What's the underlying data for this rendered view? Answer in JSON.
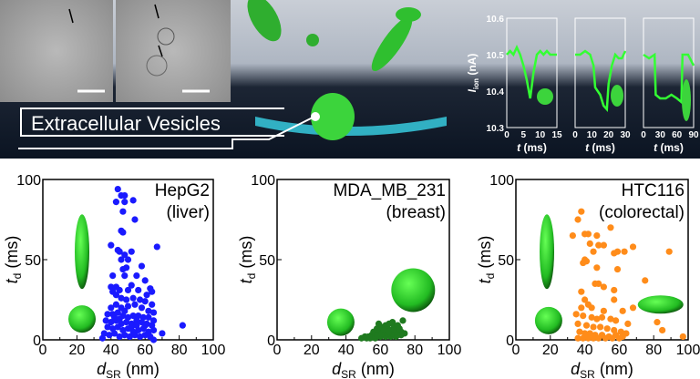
{
  "banner": {
    "caption": "Extracellular Vesicles",
    "traces": {
      "ylabel": "I_ion (nA)",
      "ylabel_main": "I",
      "ylabel_sub": "ion",
      "ylabel_unit": " (nA)",
      "yticks": [
        "10.3",
        "10.4",
        "10.5",
        "10.6"
      ],
      "ylim": [
        10.3,
        10.6
      ],
      "xlabel_main": "t",
      "xlabel_unit": " (ms)",
      "color": "#33ff33",
      "panels": [
        {
          "xticks": [
            "0",
            "5",
            "10",
            "15"
          ],
          "xlim": [
            0,
            15
          ],
          "points": [
            [
              0,
              10.5
            ],
            [
              1,
              10.51
            ],
            [
              2,
              10.5
            ],
            [
              3,
              10.52
            ],
            [
              4,
              10.5
            ],
            [
              5,
              10.47
            ],
            [
              6,
              10.43
            ],
            [
              7,
              10.38
            ],
            [
              8,
              10.45
            ],
            [
              9,
              10.5
            ],
            [
              10,
              10.51
            ],
            [
              11,
              10.5
            ],
            [
              12,
              10.51
            ],
            [
              13,
              10.5
            ],
            [
              14,
              10.5
            ],
            [
              15,
              10.5
            ]
          ]
        },
        {
          "xticks": [
            "0",
            "10",
            "20",
            "30"
          ],
          "xlim": [
            0,
            30
          ],
          "points": [
            [
              0,
              10.5
            ],
            [
              3,
              10.5
            ],
            [
              6,
              10.51
            ],
            [
              9,
              10.5
            ],
            [
              11,
              10.47
            ],
            [
              12,
              10.41
            ],
            [
              15,
              10.39
            ],
            [
              17,
              10.36
            ],
            [
              19,
              10.35
            ],
            [
              20,
              10.42
            ],
            [
              22,
              10.47
            ],
            [
              24,
              10.5
            ],
            [
              26,
              10.49
            ],
            [
              28,
              10.49
            ],
            [
              30,
              10.51
            ]
          ]
        },
        {
          "xticks": [
            "0",
            "30",
            "60",
            "90"
          ],
          "xlim": [
            0,
            90
          ],
          "points": [
            [
              0,
              10.5
            ],
            [
              10,
              10.49
            ],
            [
              20,
              10.5
            ],
            [
              22,
              10.39
            ],
            [
              30,
              10.38
            ],
            [
              40,
              10.38
            ],
            [
              50,
              10.39
            ],
            [
              60,
              10.38
            ],
            [
              68,
              10.37
            ],
            [
              70,
              10.5
            ],
            [
              80,
              10.5
            ],
            [
              90,
              10.47
            ]
          ]
        }
      ]
    }
  },
  "chart_data": [
    {
      "type": "scatter",
      "title": "HepG2",
      "subtitle": "(liver)",
      "xlabel": "d_SR (nm)",
      "ylabel": "t_d (ms)",
      "xlim": [
        0,
        100
      ],
      "ylim": [
        0,
        100
      ],
      "xticks": [
        "0",
        "20",
        "40",
        "60",
        "80",
        "100"
      ],
      "yticks": [
        "0",
        "50",
        "100"
      ],
      "color": "#1a1aff",
      "points": [
        [
          44,
          94
        ],
        [
          46,
          90
        ],
        [
          48,
          90
        ],
        [
          43,
          86
        ],
        [
          48,
          86
        ],
        [
          53,
          87
        ],
        [
          47,
          80
        ],
        [
          54,
          75
        ],
        [
          46,
          68
        ],
        [
          47,
          67
        ],
        [
          67,
          58
        ],
        [
          40,
          59
        ],
        [
          44,
          56
        ],
        [
          45,
          55
        ],
        [
          52,
          55
        ],
        [
          48,
          53
        ],
        [
          46,
          50
        ],
        [
          50,
          50
        ],
        [
          58,
          46
        ],
        [
          47,
          44
        ],
        [
          49,
          45
        ],
        [
          41,
          40
        ],
        [
          48,
          40
        ],
        [
          55,
          40
        ],
        [
          60,
          37
        ],
        [
          40,
          33
        ],
        [
          43,
          33
        ],
        [
          45,
          31
        ],
        [
          50,
          31
        ],
        [
          52,
          34
        ],
        [
          56,
          31
        ],
        [
          63,
          32
        ],
        [
          64,
          30
        ],
        [
          41,
          30
        ],
        [
          43,
          28
        ],
        [
          46,
          26
        ],
        [
          49,
          25
        ],
        [
          53,
          26
        ],
        [
          57,
          25
        ],
        [
          60,
          24
        ],
        [
          61,
          28
        ],
        [
          64,
          22
        ],
        [
          40,
          20
        ],
        [
          43,
          22
        ],
        [
          46,
          20
        ],
        [
          50,
          21
        ],
        [
          54,
          22
        ],
        [
          58,
          20
        ],
        [
          62,
          18
        ],
        [
          65,
          17
        ],
        [
          38,
          16
        ],
        [
          41,
          16
        ],
        [
          44,
          17
        ],
        [
          47,
          15
        ],
        [
          50,
          14
        ],
        [
          53,
          15
        ],
        [
          56,
          15
        ],
        [
          59,
          14
        ],
        [
          62,
          14
        ],
        [
          65,
          12
        ],
        [
          37,
          12
        ],
        [
          40,
          11
        ],
        [
          43,
          12
        ],
        [
          46,
          10
        ],
        [
          49,
          11
        ],
        [
          52,
          10
        ],
        [
          55,
          9
        ],
        [
          58,
          11
        ],
        [
          61,
          10
        ],
        [
          64,
          9
        ],
        [
          38,
          8
        ],
        [
          41,
          7
        ],
        [
          44,
          8
        ],
        [
          47,
          6
        ],
        [
          50,
          7
        ],
        [
          53,
          5
        ],
        [
          56,
          6
        ],
        [
          59,
          7
        ],
        [
          62,
          5
        ],
        [
          65,
          6
        ],
        [
          36,
          4
        ],
        [
          39,
          3
        ],
        [
          42,
          4
        ],
        [
          45,
          2
        ],
        [
          48,
          3
        ],
        [
          51,
          2
        ],
        [
          54,
          3
        ],
        [
          57,
          2
        ],
        [
          60,
          3
        ],
        [
          63,
          2
        ],
        [
          70,
          4
        ],
        [
          82,
          9
        ],
        [
          65,
          0
        ],
        [
          35,
          1
        ],
        [
          45,
          13
        ],
        [
          55,
          12
        ],
        [
          60,
          9
        ],
        [
          42,
          14
        ],
        [
          48,
          18
        ],
        [
          52,
          8
        ]
      ],
      "shapes": [
        "prolate-ellipsoid",
        "sphere"
      ]
    },
    {
      "type": "scatter",
      "title": "MDA_MB_231",
      "subtitle": "(breast)",
      "xlabel": "d_SR (nm)",
      "ylabel": "t_d (ms)",
      "xlim": [
        0,
        100
      ],
      "ylim": [
        0,
        100
      ],
      "xticks": [
        "0",
        "20",
        "40",
        "60",
        "80",
        "100"
      ],
      "yticks": [
        "0",
        "50",
        "100"
      ],
      "color": "#1f7a1f",
      "points": [
        [
          49,
          1
        ],
        [
          51,
          2
        ],
        [
          53,
          2
        ],
        [
          55,
          3
        ],
        [
          56,
          5
        ],
        [
          57,
          4
        ],
        [
          58,
          7
        ],
        [
          59,
          10
        ],
        [
          60,
          6
        ],
        [
          61,
          8
        ],
        [
          62,
          4
        ],
        [
          63,
          9
        ],
        [
          64,
          7
        ],
        [
          65,
          10
        ],
        [
          66,
          6
        ],
        [
          67,
          11
        ],
        [
          68,
          8
        ],
        [
          69,
          5
        ],
        [
          70,
          9
        ],
        [
          71,
          7
        ],
        [
          72,
          5
        ],
        [
          73,
          12
        ],
        [
          74,
          4
        ],
        [
          52,
          1
        ],
        [
          54,
          1
        ],
        [
          57,
          1
        ],
        [
          60,
          2
        ],
        [
          63,
          2
        ],
        [
          66,
          2
        ],
        [
          69,
          2
        ],
        [
          72,
          3
        ],
        [
          58,
          3
        ],
        [
          61,
          4
        ],
        [
          64,
          4
        ],
        [
          67,
          4
        ],
        [
          70,
          3
        ],
        [
          62,
          6
        ],
        [
          65,
          5
        ],
        [
          68,
          6
        ],
        [
          71,
          6
        ]
      ],
      "shapes": [
        "sphere",
        "sphere"
      ]
    },
    {
      "type": "scatter",
      "title": "HTC116",
      "subtitle": "(colorectal)",
      "xlabel": "d_SR (nm)",
      "ylabel": "t_d (ms)",
      "xlim": [
        0,
        100
      ],
      "ylim": [
        0,
        100
      ],
      "xticks": [
        "0",
        "20",
        "40",
        "60",
        "80",
        "100"
      ],
      "yticks": [
        "0",
        "50",
        "100"
      ],
      "color": "#ff8c1a",
      "points": [
        [
          38,
          80
        ],
        [
          36,
          75
        ],
        [
          55,
          70
        ],
        [
          33,
          65
        ],
        [
          40,
          66
        ],
        [
          42,
          66
        ],
        [
          47,
          65
        ],
        [
          43,
          60
        ],
        [
          48,
          59
        ],
        [
          51,
          59
        ],
        [
          68,
          58
        ],
        [
          45,
          55
        ],
        [
          57,
          54
        ],
        [
          59,
          55
        ],
        [
          63,
          55
        ],
        [
          89,
          55
        ],
        [
          40,
          50
        ],
        [
          41,
          49
        ],
        [
          39,
          48
        ],
        [
          47,
          45
        ],
        [
          59,
          44
        ],
        [
          75,
          37
        ],
        [
          46,
          35
        ],
        [
          48,
          35
        ],
        [
          51,
          33
        ],
        [
          57,
          31
        ],
        [
          38,
          30
        ],
        [
          40,
          25
        ],
        [
          57,
          25
        ],
        [
          42,
          22
        ],
        [
          38,
          20
        ],
        [
          44,
          20
        ],
        [
          51,
          18
        ],
        [
          62,
          18
        ],
        [
          68,
          20
        ],
        [
          35,
          16
        ],
        [
          39,
          15
        ],
        [
          44,
          14
        ],
        [
          47,
          13
        ],
        [
          50,
          14
        ],
        [
          55,
          13
        ],
        [
          58,
          12
        ],
        [
          65,
          10
        ],
        [
          82,
          11
        ],
        [
          36,
          10
        ],
        [
          41,
          9
        ],
        [
          45,
          8
        ],
        [
          49,
          8
        ],
        [
          53,
          7
        ],
        [
          57,
          6
        ],
        [
          61,
          5
        ],
        [
          85,
          6
        ],
        [
          37,
          5
        ],
        [
          40,
          4
        ],
        [
          43,
          4
        ],
        [
          46,
          3
        ],
        [
          50,
          3
        ],
        [
          54,
          2
        ],
        [
          58,
          3
        ],
        [
          62,
          2
        ],
        [
          64,
          4
        ],
        [
          36,
          1
        ],
        [
          39,
          1
        ],
        [
          42,
          1
        ],
        [
          45,
          1
        ],
        [
          48,
          1
        ],
        [
          52,
          1
        ],
        [
          56,
          1
        ],
        [
          60,
          1
        ],
        [
          97,
          2
        ]
      ],
      "shapes": [
        "prolate-ellipsoid",
        "sphere",
        "oblate-ellipsoid"
      ]
    }
  ]
}
